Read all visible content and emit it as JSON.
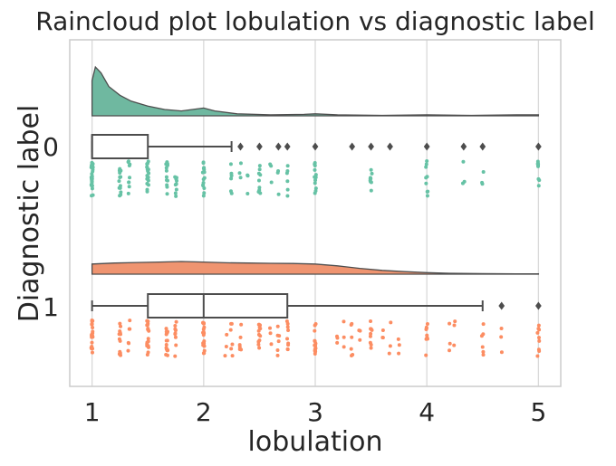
{
  "chart_data": {
    "type": "raincloud",
    "title": "Raincloud plot lobulation vs diagnostic label",
    "xlabel": "lobulation",
    "ylabel": "Diagnostic label",
    "xlim": [
      0.8,
      5.2
    ],
    "xticks": [
      "1",
      "2",
      "3",
      "4",
      "5"
    ],
    "grid": "vertical",
    "groups": [
      {
        "label": "0",
        "color": "#6fb8a0",
        "point_color": "#66c2a5",
        "box": {
          "min": 1.0,
          "q1": 1.0,
          "median": 1.0,
          "q3": 1.5,
          "whisker_high": 2.25
        },
        "outliers": [
          2.33,
          2.5,
          2.67,
          2.75,
          3.0,
          3.33,
          3.5,
          3.67,
          4.0,
          4.33,
          4.5,
          5.0
        ],
        "density": {
          "x": [
            1.0,
            1.03,
            1.08,
            1.15,
            1.25,
            1.35,
            1.5,
            1.65,
            1.8,
            1.9,
            2.0,
            2.1,
            2.3,
            2.6,
            2.9,
            3.0,
            3.2,
            3.6,
            4.0,
            4.4,
            4.8,
            5.0
          ],
          "y": [
            0.72,
            1.0,
            0.88,
            0.6,
            0.42,
            0.3,
            0.2,
            0.13,
            0.1,
            0.13,
            0.16,
            0.1,
            0.04,
            0.02,
            0.03,
            0.04,
            0.02,
            0.01,
            0.02,
            0.01,
            0.02,
            0.02
          ]
        },
        "points": [
          1.0,
          1.0,
          1.0,
          1.0,
          1.0,
          1.0,
          1.0,
          1.0,
          1.0,
          1.0,
          1.25,
          1.25,
          1.25,
          1.25,
          1.25,
          1.33,
          1.33,
          1.33,
          1.5,
          1.5,
          1.5,
          1.5,
          1.5,
          1.5,
          1.67,
          1.67,
          1.67,
          1.67,
          1.75,
          1.75,
          1.75,
          2.0,
          2.0,
          2.0,
          2.0,
          2.0,
          2.25,
          2.25,
          2.33,
          2.4,
          2.5,
          2.5,
          2.5,
          2.6,
          2.67,
          2.75,
          2.75,
          3.0,
          3.0,
          3.0,
          3.0,
          3.5,
          3.5,
          3.5,
          4.0,
          4.0,
          4.0,
          4.33,
          4.5,
          5.0,
          5.0,
          5.0
        ]
      },
      {
        "label": "1",
        "color": "#ef9470",
        "point_color": "#fc8d62",
        "box": {
          "min": 1.0,
          "q1": 1.5,
          "median": 2.0,
          "q3": 2.75,
          "whisker_high": 4.5
        },
        "outliers": [
          4.67,
          5.0
        ],
        "density": {
          "x": [
            1.0,
            1.2,
            1.4,
            1.6,
            1.8,
            2.0,
            2.2,
            2.4,
            2.6,
            2.8,
            3.0,
            3.2,
            3.4,
            3.6,
            3.8,
            4.0,
            4.2,
            4.5,
            4.8,
            5.0
          ],
          "y": [
            0.8,
            0.88,
            0.92,
            0.96,
            1.0,
            0.96,
            0.9,
            0.88,
            0.86,
            0.84,
            0.8,
            0.66,
            0.46,
            0.3,
            0.2,
            0.12,
            0.07,
            0.04,
            0.02,
            0.02
          ]
        },
        "points": [
          1.0,
          1.0,
          1.0,
          1.0,
          1.0,
          1.0,
          1.0,
          1.0,
          1.25,
          1.25,
          1.25,
          1.25,
          1.33,
          1.33,
          1.5,
          1.5,
          1.5,
          1.5,
          1.5,
          1.5,
          1.67,
          1.67,
          1.67,
          1.67,
          1.67,
          1.75,
          1.75,
          1.75,
          2.0,
          2.0,
          2.0,
          2.0,
          2.0,
          2.0,
          2.2,
          2.25,
          2.25,
          2.33,
          2.33,
          2.5,
          2.5,
          2.5,
          2.5,
          2.6,
          2.67,
          2.67,
          2.75,
          2.75,
          2.75,
          3.0,
          3.0,
          3.0,
          3.0,
          3.0,
          3.2,
          3.25,
          3.33,
          3.33,
          3.4,
          3.5,
          3.5,
          3.5,
          3.6,
          3.67,
          3.75,
          4.0,
          4.0,
          4.0,
          4.2,
          4.25,
          4.5,
          4.5,
          4.67,
          5.0,
          5.0,
          5.0
        ]
      }
    ]
  }
}
